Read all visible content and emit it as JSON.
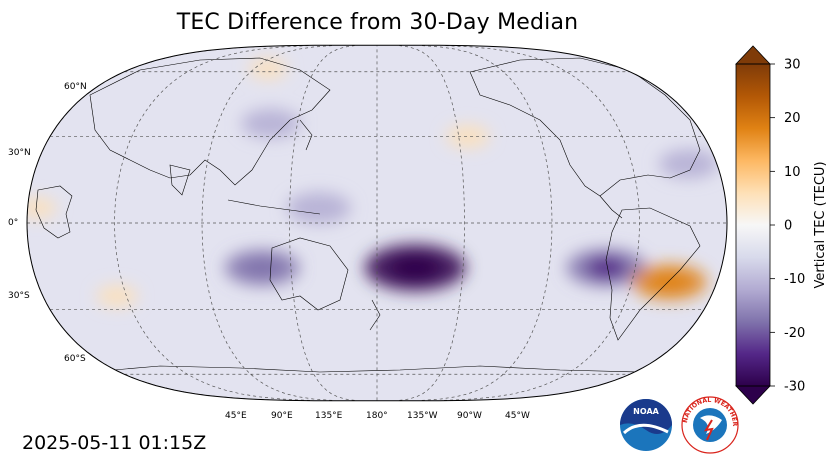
{
  "title": "TEC Difference from 30-Day Median",
  "timestamp": "2025-05-11 01:15Z",
  "map": {
    "projection": "robinson",
    "central_longitude_deg": 180,
    "latitude_labels": [
      "60°N",
      "30°N",
      "0°",
      "30°S",
      "60°S"
    ],
    "latitude_values": [
      60,
      30,
      0,
      -30,
      -60
    ],
    "longitude_labels": [
      "45°E",
      "90°E",
      "135°E",
      "180°",
      "135°W",
      "90°W",
      "45°W"
    ],
    "longitude_values": [
      45,
      90,
      135,
      180,
      -135,
      -90,
      -45
    ],
    "anomalies": [
      {
        "lon": -160,
        "lat": -15,
        "value": -28
      },
      {
        "lon": 120,
        "lat": -15,
        "value": -18
      },
      {
        "lon": 150,
        "lat": 5,
        "value": -14
      },
      {
        "lon": -60,
        "lat": -15,
        "value": -20
      },
      {
        "lon": -25,
        "lat": -20,
        "value": 18
      },
      {
        "lon": -15,
        "lat": 20,
        "value": -12
      },
      {
        "lon": 120,
        "lat": 35,
        "value": -12
      },
      {
        "lon": -130,
        "lat": 30,
        "value": 6
      },
      {
        "lon": 40,
        "lat": -25,
        "value": 5
      },
      {
        "lon": 5,
        "lat": 5,
        "value": 4
      },
      {
        "lon": 100,
        "lat": 62,
        "value": 4
      }
    ]
  },
  "colorbar": {
    "label": "Vertical TEC (TECU)",
    "min": -30,
    "max": 30,
    "ticks": [
      "30",
      "20",
      "10",
      "0",
      "-10",
      "-20",
      "-30"
    ],
    "tick_values": [
      30,
      20,
      10,
      0,
      -10,
      -20,
      -30
    ],
    "colors_low_to_high": [
      "#2d004b",
      "#542788",
      "#8073ac",
      "#b2abd2",
      "#d8daeb",
      "#f7f7f7",
      "#fee0b6",
      "#fdb863",
      "#e08214",
      "#b35806",
      "#7f3b08"
    ]
  },
  "logos": {
    "noaa_text": "NOAA",
    "nws_text": "NATIONAL WEATHER SERVICE"
  }
}
